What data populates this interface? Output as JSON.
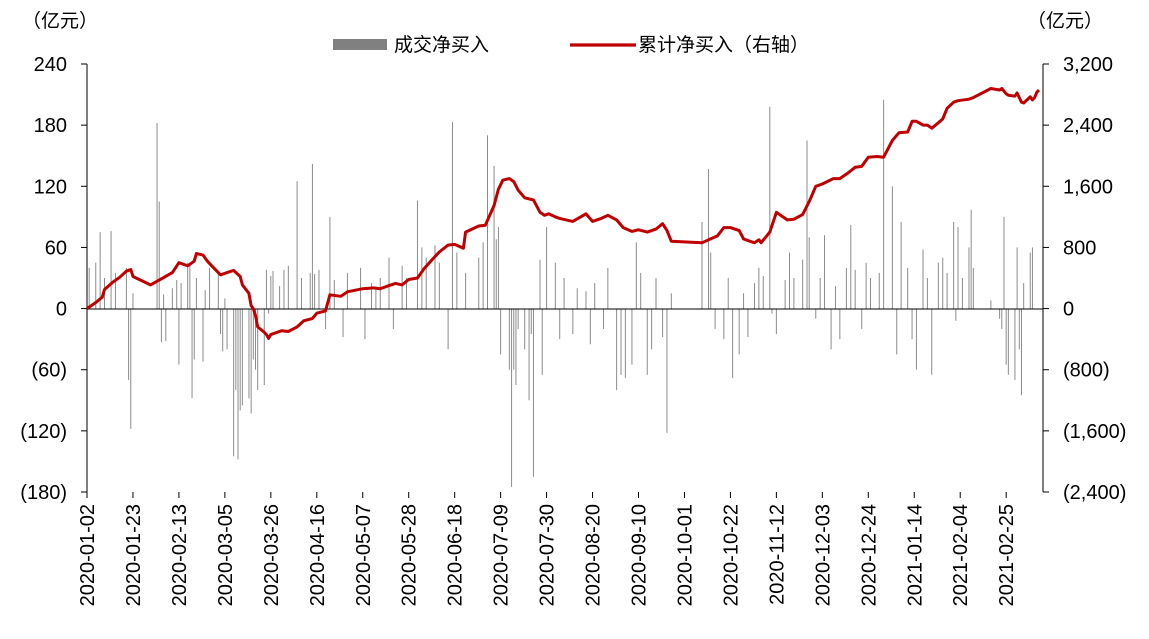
{
  "chart_data": {
    "type": "bar+line",
    "left_unit": "（亿元）",
    "right_unit": "（亿元）",
    "legend": [
      "成交净买入",
      "累计净买入（右轴）"
    ],
    "colors": {
      "bars": "#8c8c8c",
      "legend_bar": "#808080",
      "line": "#c00000"
    },
    "left_axis": {
      "min": -180,
      "max": 240,
      "ticks": [
        240,
        180,
        120,
        60,
        0,
        -60,
        -120,
        -180
      ],
      "tick_labels": [
        "240",
        "180",
        "120",
        "60",
        "0",
        "(60)",
        "(120)",
        "(180)"
      ]
    },
    "right_axis": {
      "min": -2400,
      "max": 3200,
      "ticks": [
        3200,
        2400,
        1600,
        800,
        0,
        -800,
        -1600,
        -2400
      ],
      "tick_labels": [
        "3,200",
        "2,400",
        "1,600",
        "800",
        "0",
        "(800)",
        "(1,600)",
        "(2,400)"
      ]
    },
    "x_dates": [
      "2020-01-02",
      "2020-01-23",
      "2020-02-13",
      "2020-03-05",
      "2020-03-26",
      "2020-04-16",
      "2020-05-07",
      "2020-05-28",
      "2020-06-18",
      "2020-07-09",
      "2020-07-30",
      "2020-08-20",
      "2020-09-10",
      "2020-10-01",
      "2020-10-22",
      "2020-11-12",
      "2020-12-03",
      "2020-12-24",
      "2021-01-14",
      "2021-02-04",
      "2021-02-25"
    ],
    "first_date": "2020-01-02",
    "last_date": "2021-03-12",
    "daily_net_buy": [
      [
        "2020-01-03",
        40
      ],
      [
        "2020-01-06",
        45
      ],
      [
        "2020-01-08",
        75
      ],
      [
        "2020-01-10",
        30
      ],
      [
        "2020-01-13",
        76
      ],
      [
        "2020-01-15",
        35
      ],
      [
        "2020-01-20",
        40
      ],
      [
        "2020-01-21",
        -70
      ],
      [
        "2020-01-22",
        -118
      ],
      [
        "2020-01-23",
        15
      ],
      [
        "2020-02-03",
        182
      ],
      [
        "2020-02-04",
        105
      ],
      [
        "2020-02-05",
        -33
      ],
      [
        "2020-02-06",
        14
      ],
      [
        "2020-02-07",
        -32
      ],
      [
        "2020-02-10",
        20
      ],
      [
        "2020-02-12",
        28
      ],
      [
        "2020-02-13",
        -55
      ],
      [
        "2020-02-14",
        25
      ],
      [
        "2020-02-17",
        45
      ],
      [
        "2020-02-18",
        42
      ],
      [
        "2020-02-19",
        -88
      ],
      [
        "2020-02-20",
        -50
      ],
      [
        "2020-02-21",
        30
      ],
      [
        "2020-02-24",
        -52
      ],
      [
        "2020-02-25",
        18
      ],
      [
        "2020-02-27",
        40
      ],
      [
        "2020-03-02",
        35
      ],
      [
        "2020-03-03",
        -25
      ],
      [
        "2020-03-04",
        -42
      ],
      [
        "2020-03-05",
        10
      ],
      [
        "2020-03-06",
        -40
      ],
      [
        "2020-03-09",
        -145
      ],
      [
        "2020-03-10",
        -80
      ],
      [
        "2020-03-11",
        -148
      ],
      [
        "2020-03-12",
        -100
      ],
      [
        "2020-03-13",
        -95
      ],
      [
        "2020-03-16",
        -88
      ],
      [
        "2020-03-17",
        -103
      ],
      [
        "2020-03-18",
        -50
      ],
      [
        "2020-03-19",
        -60
      ],
      [
        "2020-03-20",
        -80
      ],
      [
        "2020-03-23",
        -75
      ],
      [
        "2020-03-24",
        38
      ],
      [
        "2020-03-25",
        -5
      ],
      [
        "2020-03-26",
        32
      ],
      [
        "2020-03-27",
        37
      ],
      [
        "2020-03-30",
        22
      ],
      [
        "2020-04-01",
        38
      ],
      [
        "2020-04-03",
        42
      ],
      [
        "2020-04-07",
        125
      ],
      [
        "2020-04-09",
        30
      ],
      [
        "2020-04-13",
        35
      ],
      [
        "2020-04-14",
        142
      ],
      [
        "2020-04-15",
        34
      ],
      [
        "2020-04-17",
        38
      ],
      [
        "2020-04-20",
        -20
      ],
      [
        "2020-04-22",
        90
      ],
      [
        "2020-04-24",
        28
      ],
      [
        "2020-04-28",
        -28
      ],
      [
        "2020-04-30",
        35
      ],
      [
        "2020-05-06",
        40
      ],
      [
        "2020-05-08",
        -30
      ],
      [
        "2020-05-11",
        25
      ],
      [
        "2020-05-13",
        20
      ],
      [
        "2020-05-15",
        30
      ],
      [
        "2020-05-19",
        50
      ],
      [
        "2020-05-21",
        -20
      ],
      [
        "2020-05-25",
        42
      ],
      [
        "2020-05-27",
        30
      ],
      [
        "2020-06-01",
        106
      ],
      [
        "2020-06-03",
        60
      ],
      [
        "2020-06-05",
        50
      ],
      [
        "2020-06-09",
        62
      ],
      [
        "2020-06-11",
        45
      ],
      [
        "2020-06-15",
        -40
      ],
      [
        "2020-06-17",
        183
      ],
      [
        "2020-06-19",
        55
      ],
      [
        "2020-06-23",
        35
      ],
      [
        "2020-06-29",
        50
      ],
      [
        "2020-07-01",
        65
      ],
      [
        "2020-07-03",
        170
      ],
      [
        "2020-07-06",
        140
      ],
      [
        "2020-07-07",
        68
      ],
      [
        "2020-07-08",
        80
      ],
      [
        "2020-07-09",
        -45
      ],
      [
        "2020-07-13",
        -60
      ],
      [
        "2020-07-14",
        -175
      ],
      [
        "2020-07-15",
        -60
      ],
      [
        "2020-07-16",
        -75
      ],
      [
        "2020-07-17",
        -20
      ],
      [
        "2020-07-20",
        -40
      ],
      [
        "2020-07-22",
        -90
      ],
      [
        "2020-07-23",
        -25
      ],
      [
        "2020-07-24",
        -165
      ],
      [
        "2020-07-27",
        48
      ],
      [
        "2020-07-28",
        -65
      ],
      [
        "2020-07-30",
        80
      ],
      [
        "2020-08-03",
        45
      ],
      [
        "2020-08-05",
        -30
      ],
      [
        "2020-08-07",
        30
      ],
      [
        "2020-08-11",
        -25
      ],
      [
        "2020-08-13",
        20
      ],
      [
        "2020-08-17",
        17
      ],
      [
        "2020-08-19",
        -35
      ],
      [
        "2020-08-21",
        25
      ],
      [
        "2020-08-25",
        -20
      ],
      [
        "2020-08-27",
        40
      ],
      [
        "2020-08-31",
        -80
      ],
      [
        "2020-09-02",
        -65
      ],
      [
        "2020-09-04",
        -68
      ],
      [
        "2020-09-07",
        -55
      ],
      [
        "2020-09-09",
        65
      ],
      [
        "2020-09-11",
        35
      ],
      [
        "2020-09-14",
        -65
      ],
      [
        "2020-09-16",
        -40
      ],
      [
        "2020-09-18",
        30
      ],
      [
        "2020-09-21",
        -28
      ],
      [
        "2020-09-23",
        -122
      ],
      [
        "2020-09-25",
        15
      ],
      [
        "2020-10-09",
        85
      ],
      [
        "2020-10-12",
        137
      ],
      [
        "2020-10-13",
        55
      ],
      [
        "2020-10-15",
        -20
      ],
      [
        "2020-10-19",
        -30
      ],
      [
        "2020-10-21",
        30
      ],
      [
        "2020-10-23",
        -68
      ],
      [
        "2020-10-26",
        -45
      ],
      [
        "2020-10-28",
        15
      ],
      [
        "2020-10-30",
        -28
      ],
      [
        "2020-11-02",
        25
      ],
      [
        "2020-11-04",
        40
      ],
      [
        "2020-11-06",
        32
      ],
      [
        "2020-11-09",
        198
      ],
      [
        "2020-11-10",
        -5
      ],
      [
        "2020-11-12",
        -25
      ],
      [
        "2020-11-16",
        28
      ],
      [
        "2020-11-18",
        55
      ],
      [
        "2020-11-20",
        30
      ],
      [
        "2020-11-24",
        48
      ],
      [
        "2020-11-26",
        165
      ],
      [
        "2020-11-27",
        70
      ],
      [
        "2020-11-30",
        -10
      ],
      [
        "2020-12-02",
        30
      ],
      [
        "2020-12-04",
        72
      ],
      [
        "2020-12-07",
        -40
      ],
      [
        "2020-12-09",
        22
      ],
      [
        "2020-12-11",
        -30
      ],
      [
        "2020-12-14",
        40
      ],
      [
        "2020-12-16",
        82
      ],
      [
        "2020-12-18",
        38
      ],
      [
        "2020-12-21",
        -20
      ],
      [
        "2020-12-23",
        45
      ],
      [
        "2020-12-25",
        30
      ],
      [
        "2020-12-29",
        35
      ],
      [
        "2020-12-31",
        205
      ],
      [
        "2021-01-04",
        120
      ],
      [
        "2021-01-06",
        -45
      ],
      [
        "2021-01-08",
        85
      ],
      [
        "2021-01-11",
        40
      ],
      [
        "2021-01-13",
        -30
      ],
      [
        "2021-01-15",
        -60
      ],
      [
        "2021-01-18",
        58
      ],
      [
        "2021-01-20",
        30
      ],
      [
        "2021-01-22",
        -65
      ],
      [
        "2021-01-25",
        45
      ],
      [
        "2021-01-27",
        50
      ],
      [
        "2021-01-29",
        35
      ],
      [
        "2021-02-01",
        85
      ],
      [
        "2021-02-02",
        -12
      ],
      [
        "2021-02-03",
        80
      ],
      [
        "2021-02-05",
        30
      ],
      [
        "2021-02-08",
        60
      ],
      [
        "2021-02-09",
        97
      ],
      [
        "2021-02-10",
        40
      ],
      [
        "2021-02-18",
        8
      ],
      [
        "2021-02-22",
        -10
      ],
      [
        "2021-02-23",
        -20
      ],
      [
        "2021-02-24",
        90
      ],
      [
        "2021-02-25",
        -55
      ],
      [
        "2021-02-26",
        -65
      ],
      [
        "2021-03-01",
        -70
      ],
      [
        "2021-03-02",
        60
      ],
      [
        "2021-03-03",
        -40
      ],
      [
        "2021-03-04",
        -85
      ],
      [
        "2021-03-05",
        25
      ],
      [
        "2021-03-08",
        55
      ],
      [
        "2021-03-09",
        60
      ]
    ],
    "cumulative": [
      [
        "2020-01-02",
        0
      ],
      [
        "2020-01-06",
        80
      ],
      [
        "2020-01-09",
        150
      ],
      [
        "2020-01-10",
        250
      ],
      [
        "2020-01-14",
        350
      ],
      [
        "2020-01-17",
        410
      ],
      [
        "2020-01-20",
        490
      ],
      [
        "2020-01-22",
        510
      ],
      [
        "2020-01-23",
        420
      ],
      [
        "2020-01-31",
        310
      ],
      [
        "2020-02-05",
        390
      ],
      [
        "2020-02-10",
        470
      ],
      [
        "2020-02-13",
        600
      ],
      [
        "2020-02-17",
        560
      ],
      [
        "2020-02-20",
        620
      ],
      [
        "2020-02-21",
        720
      ],
      [
        "2020-02-24",
        700
      ],
      [
        "2020-02-26",
        620
      ],
      [
        "2020-02-28",
        560
      ],
      [
        "2020-03-02",
        470
      ],
      [
        "2020-03-03",
        440
      ],
      [
        "2020-03-06",
        470
      ],
      [
        "2020-03-09",
        500
      ],
      [
        "2020-03-12",
        420
      ],
      [
        "2020-03-13",
        310
      ],
      [
        "2020-03-16",
        200
      ],
      [
        "2020-03-17",
        40
      ],
      [
        "2020-03-18",
        0
      ],
      [
        "2020-03-19",
        -90
      ],
      [
        "2020-03-20",
        -240
      ],
      [
        "2020-03-23",
        -310
      ],
      [
        "2020-03-24",
        -340
      ],
      [
        "2020-03-25",
        -390
      ],
      [
        "2020-03-26",
        -340
      ],
      [
        "2020-03-31",
        -290
      ],
      [
        "2020-04-03",
        -300
      ],
      [
        "2020-04-07",
        -240
      ],
      [
        "2020-04-10",
        -160
      ],
      [
        "2020-04-14",
        -130
      ],
      [
        "2020-04-16",
        -60
      ],
      [
        "2020-04-20",
        -30
      ],
      [
        "2020-04-22",
        180
      ],
      [
        "2020-04-27",
        160
      ],
      [
        "2020-04-30",
        220
      ],
      [
        "2020-05-07",
        260
      ],
      [
        "2020-05-12",
        270
      ],
      [
        "2020-05-15",
        260
      ],
      [
        "2020-05-19",
        300
      ],
      [
        "2020-05-22",
        330
      ],
      [
        "2020-05-25",
        310
      ],
      [
        "2020-05-28",
        380
      ],
      [
        "2020-06-01",
        400
      ],
      [
        "2020-06-04",
        520
      ],
      [
        "2020-06-08",
        650
      ],
      [
        "2020-06-11",
        740
      ],
      [
        "2020-06-15",
        830
      ],
      [
        "2020-06-18",
        840
      ],
      [
        "2020-06-22",
        790
      ],
      [
        "2020-06-23",
        1000
      ],
      [
        "2020-06-29",
        1080
      ],
      [
        "2020-07-02",
        1090
      ],
      [
        "2020-07-06",
        1350
      ],
      [
        "2020-07-08",
        1560
      ],
      [
        "2020-07-10",
        1680
      ],
      [
        "2020-07-13",
        1700
      ],
      [
        "2020-07-15",
        1660
      ],
      [
        "2020-07-17",
        1550
      ],
      [
        "2020-07-20",
        1450
      ],
      [
        "2020-07-24",
        1420
      ],
      [
        "2020-07-27",
        1260
      ],
      [
        "2020-07-29",
        1220
      ],
      [
        "2020-07-31",
        1240
      ],
      [
        "2020-08-03",
        1200
      ],
      [
        "2020-08-05",
        1180
      ],
      [
        "2020-08-11",
        1140
      ],
      [
        "2020-08-17",
        1240
      ],
      [
        "2020-08-20",
        1140
      ],
      [
        "2020-08-24",
        1180
      ],
      [
        "2020-08-27",
        1220
      ],
      [
        "2020-08-31",
        1160
      ],
      [
        "2020-09-03",
        1060
      ],
      [
        "2020-09-07",
        1010
      ],
      [
        "2020-09-10",
        1030
      ],
      [
        "2020-09-14",
        1000
      ],
      [
        "2020-09-18",
        1040
      ],
      [
        "2020-09-21",
        1110
      ],
      [
        "2020-09-23",
        1020
      ],
      [
        "2020-09-25",
        880
      ],
      [
        "2020-10-09",
        860
      ],
      [
        "2020-10-12",
        900
      ],
      [
        "2020-10-16",
        950
      ],
      [
        "2020-10-19",
        1060
      ],
      [
        "2020-10-22",
        1060
      ],
      [
        "2020-10-26",
        1020
      ],
      [
        "2020-10-28",
        910
      ],
      [
        "2020-11-02",
        860
      ],
      [
        "2020-11-04",
        900
      ],
      [
        "2020-11-05",
        860
      ],
      [
        "2020-11-09",
        1000
      ],
      [
        "2020-11-12",
        1260
      ],
      [
        "2020-11-17",
        1160
      ],
      [
        "2020-11-20",
        1170
      ],
      [
        "2020-11-24",
        1230
      ],
      [
        "2020-11-27",
        1400
      ],
      [
        "2020-11-30",
        1600
      ],
      [
        "2020-12-03",
        1630
      ],
      [
        "2020-12-08",
        1700
      ],
      [
        "2020-12-11",
        1700
      ],
      [
        "2020-12-15",
        1780
      ],
      [
        "2020-12-18",
        1850
      ],
      [
        "2020-12-21",
        1860
      ],
      [
        "2020-12-24",
        1980
      ],
      [
        "2020-12-28",
        1990
      ],
      [
        "2020-12-31",
        1980
      ],
      [
        "2021-01-04",
        2200
      ],
      [
        "2021-01-07",
        2300
      ],
      [
        "2021-01-11",
        2310
      ],
      [
        "2021-01-13",
        2450
      ],
      [
        "2021-01-15",
        2450
      ],
      [
        "2021-01-18",
        2400
      ],
      [
        "2021-01-20",
        2400
      ],
      [
        "2021-01-22",
        2360
      ],
      [
        "2021-01-25",
        2430
      ],
      [
        "2021-01-27",
        2480
      ],
      [
        "2021-01-29",
        2620
      ],
      [
        "2021-02-01",
        2700
      ],
      [
        "2021-02-03",
        2720
      ],
      [
        "2021-02-08",
        2740
      ],
      [
        "2021-02-10",
        2760
      ],
      [
        "2021-02-18",
        2880
      ],
      [
        "2021-02-22",
        2860
      ],
      [
        "2021-02-23",
        2880
      ],
      [
        "2021-02-25",
        2810
      ],
      [
        "2021-02-26",
        2790
      ],
      [
        "2021-03-01",
        2780
      ],
      [
        "2021-03-02",
        2820
      ],
      [
        "2021-03-03",
        2760
      ],
      [
        "2021-03-04",
        2700
      ],
      [
        "2021-03-05",
        2690
      ],
      [
        "2021-03-08",
        2770
      ],
      [
        "2021-03-09",
        2730
      ],
      [
        "2021-03-10",
        2760
      ],
      [
        "2021-03-11",
        2830
      ],
      [
        "2021-03-12",
        2860
      ]
    ]
  }
}
